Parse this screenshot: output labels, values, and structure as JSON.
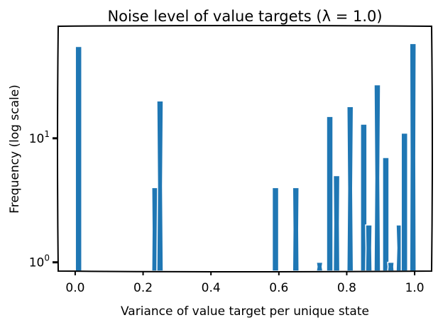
{
  "chart_data": {
    "type": "bar",
    "title": "Noise level of value targets (λ = 1.0)",
    "xlabel": "Variance of value target per unique state",
    "ylabel": "Frequency (log scale)",
    "y_scale": "log",
    "xlim": [
      -0.05,
      1.05
    ],
    "ylim": [
      0.85,
      80
    ],
    "x_ticks": [
      {
        "value": 0.0,
        "label": "0.0"
      },
      {
        "value": 0.2,
        "label": "0.2"
      },
      {
        "value": 0.4,
        "label": "0.4"
      },
      {
        "value": 0.6,
        "label": "0.6"
      },
      {
        "value": 0.8,
        "label": "0.8"
      },
      {
        "value": 1.0,
        "label": "1.0"
      }
    ],
    "y_ticks": [
      {
        "value": 1,
        "base": "10",
        "exp": "0"
      },
      {
        "value": 10,
        "base": "10",
        "exp": "1"
      }
    ],
    "bar_color": "#1f77b4",
    "grid": false,
    "bars": [
      {
        "x": 0.01,
        "value": 55
      },
      {
        "x": 0.235,
        "value": 4
      },
      {
        "x": 0.25,
        "value": 20
      },
      {
        "x": 0.59,
        "value": 4
      },
      {
        "x": 0.65,
        "value": 4
      },
      {
        "x": 0.72,
        "value": 1
      },
      {
        "x": 0.75,
        "value": 15
      },
      {
        "x": 0.77,
        "value": 5
      },
      {
        "x": 0.81,
        "value": 18
      },
      {
        "x": 0.85,
        "value": 13
      },
      {
        "x": 0.865,
        "value": 2
      },
      {
        "x": 0.89,
        "value": 27
      },
      {
        "x": 0.915,
        "value": 7
      },
      {
        "x": 0.93,
        "value": 1
      },
      {
        "x": 0.955,
        "value": 2
      },
      {
        "x": 0.97,
        "value": 11
      },
      {
        "x": 0.995,
        "value": 58
      }
    ]
  }
}
